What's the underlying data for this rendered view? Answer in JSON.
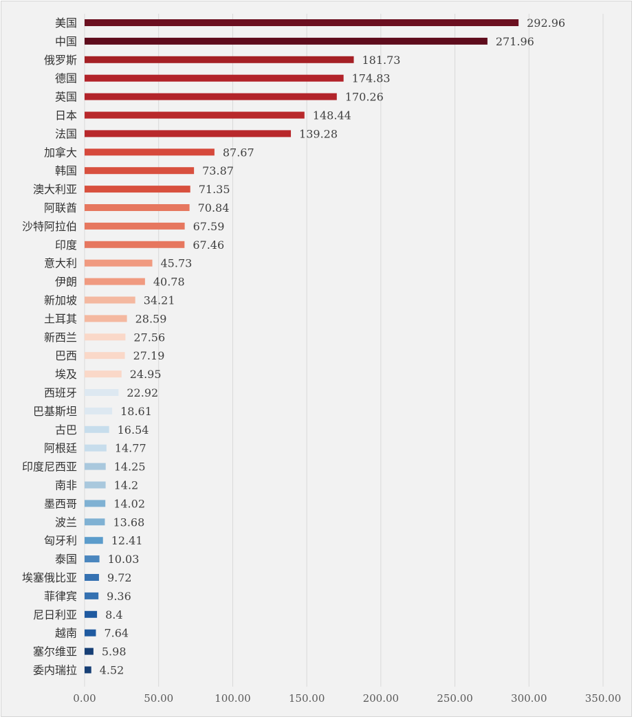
{
  "chart_data": {
    "type": "bar",
    "orientation": "horizontal",
    "grid": true,
    "xlim": [
      0,
      350
    ],
    "x_ticks": [
      "0.00",
      "50.00",
      "100.00",
      "150.00",
      "200.00",
      "250.00",
      "300.00",
      "350.00"
    ],
    "categories": [
      "美国",
      "中国",
      "俄罗斯",
      "德国",
      "英国",
      "日本",
      "法国",
      "加拿大",
      "韩国",
      "澳大利亚",
      "阿联酋",
      "沙特阿拉伯",
      "印度",
      "意大利",
      "伊朗",
      "新加坡",
      "土耳其",
      "新西兰",
      "巴西",
      "埃及",
      "西班牙",
      "巴基斯坦",
      "古巴",
      "阿根廷",
      "印度尼西亚",
      "南非",
      "墨西哥",
      "波兰",
      "匈牙利",
      "泰国",
      "埃塞俄比亚",
      "菲律宾",
      "尼日利亚",
      "越南",
      "塞尔维亚",
      "委内瑞拉"
    ],
    "values": [
      292.96,
      271.96,
      181.73,
      174.83,
      170.26,
      148.44,
      139.28,
      87.67,
      73.87,
      71.35,
      70.84,
      67.59,
      67.46,
      45.73,
      40.78,
      34.21,
      28.59,
      27.56,
      27.19,
      24.95,
      22.92,
      18.61,
      16.54,
      14.77,
      14.25,
      14.2,
      14.02,
      13.68,
      12.41,
      10.03,
      9.72,
      9.36,
      8.4,
      7.64,
      5.98,
      4.52
    ],
    "value_labels": [
      "292.96",
      "271.96",
      "181.73",
      "174.83",
      "170.26",
      "148.44",
      "139.28",
      "87.67",
      "73.87",
      "71.35",
      "70.84",
      "67.59",
      "67.46",
      "45.73",
      "40.78",
      "34.21",
      "28.59",
      "27.56",
      "27.19",
      "24.95",
      "22.92",
      "18.61",
      "16.54",
      "14.77",
      "14.25",
      "14.2",
      "14.02",
      "13.68",
      "12.41",
      "10.03",
      "9.72",
      "9.36",
      "8.4",
      "7.64",
      "5.98",
      "4.52"
    ],
    "colors": [
      "#6b1020",
      "#5e0c1c",
      "#a52025",
      "#b2232a",
      "#b2232a",
      "#b8282b",
      "#b8282b",
      "#d6493c",
      "#d8503e",
      "#d8503e",
      "#e6775f",
      "#e6775f",
      "#e6775f",
      "#f09a80",
      "#f09a80",
      "#f4b8a0",
      "#f4b8a0",
      "#fad8c8",
      "#fad8c8",
      "#fad8c8",
      "#dde8f1",
      "#dde8f1",
      "#c7ddec",
      "#c7ddec",
      "#a9c8dd",
      "#a9c8dd",
      "#7fb1d3",
      "#7fb1d3",
      "#5b9ccb",
      "#4a86be",
      "#3571b1",
      "#3571b1",
      "#1f5aa0",
      "#1f5aa0",
      "#173f75",
      "#173f75"
    ]
  }
}
